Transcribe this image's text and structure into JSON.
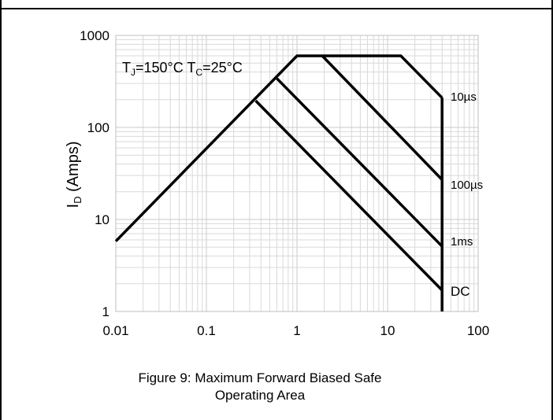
{
  "chart_data": {
    "type": "line",
    "x_scale": "log",
    "y_scale": "log",
    "xlim": [
      0.01,
      100
    ],
    "ylim": [
      1,
      1000
    ],
    "x_ticks": [
      "0.01",
      "0.1",
      "1",
      "10",
      "100"
    ],
    "y_ticks": [
      "1",
      "10",
      "100",
      "1000"
    ],
    "ylabel_main": "I",
    "ylabel_sub": "D",
    "ylabel_rest": " (Amps)",
    "annotation": {
      "tj_main": "T",
      "tj_sub": "J",
      "tj_rest": "=150°C T",
      "tc_sub": "C",
      "tc_rest": "=25°C"
    },
    "grid": true,
    "series": [
      {
        "name": "10µs",
        "points": [
          [
            0.01,
            5.8
          ],
          [
            1.0,
            600
          ],
          [
            14,
            600
          ],
          [
            40,
            210
          ]
        ]
      },
      {
        "name": "100µs",
        "points": [
          [
            1.9,
            600
          ],
          [
            40,
            27
          ]
        ]
      },
      {
        "name": "1ms",
        "points": [
          [
            0.6,
            340
          ],
          [
            40,
            5.1
          ]
        ]
      },
      {
        "name": "DC",
        "points": [
          [
            0.35,
            195
          ],
          [
            40,
            1.7
          ]
        ]
      }
    ],
    "limit_line": {
      "points": [
        [
          40,
          210
        ],
        [
          40,
          1
        ]
      ]
    },
    "line_color": "#000000",
    "grid_color": "#d9d9d9"
  },
  "caption_line1": "Figure 9: Maximum Forward Biased Safe",
  "caption_line2": "Operating Area"
}
